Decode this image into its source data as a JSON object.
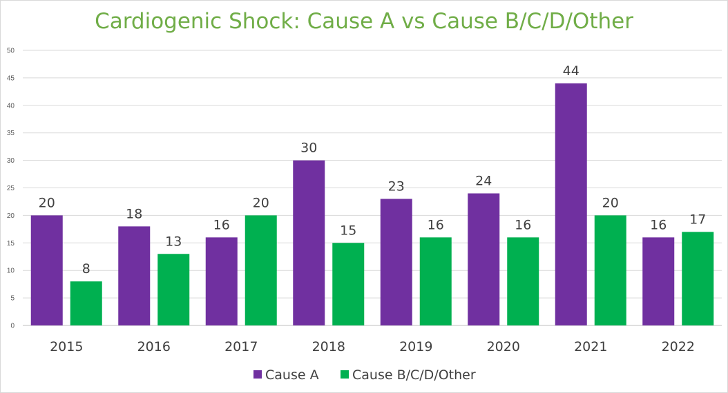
{
  "chart_data": {
    "type": "bar",
    "title": "Cardiogenic Shock: Cause A vs Cause B/C/D/Other",
    "xlabel": "",
    "ylabel": "",
    "categories": [
      "2015",
      "2016",
      "2017",
      "2018",
      "2019",
      "2020",
      "2021",
      "2022"
    ],
    "series": [
      {
        "name": "Cause A",
        "color": "#7030a0",
        "values": [
          20,
          18,
          16,
          30,
          23,
          24,
          44,
          16
        ]
      },
      {
        "name": "Cause B/C/D/Other",
        "color": "#00b050",
        "values": [
          8,
          13,
          20,
          15,
          16,
          16,
          20,
          17
        ]
      }
    ],
    "ylim": [
      0,
      50
    ],
    "yticks": [
      0,
      5,
      10,
      15,
      20,
      25,
      30,
      35,
      40,
      45,
      50
    ],
    "grid": true,
    "legend": "bottom",
    "title_color": "#70ad47"
  }
}
